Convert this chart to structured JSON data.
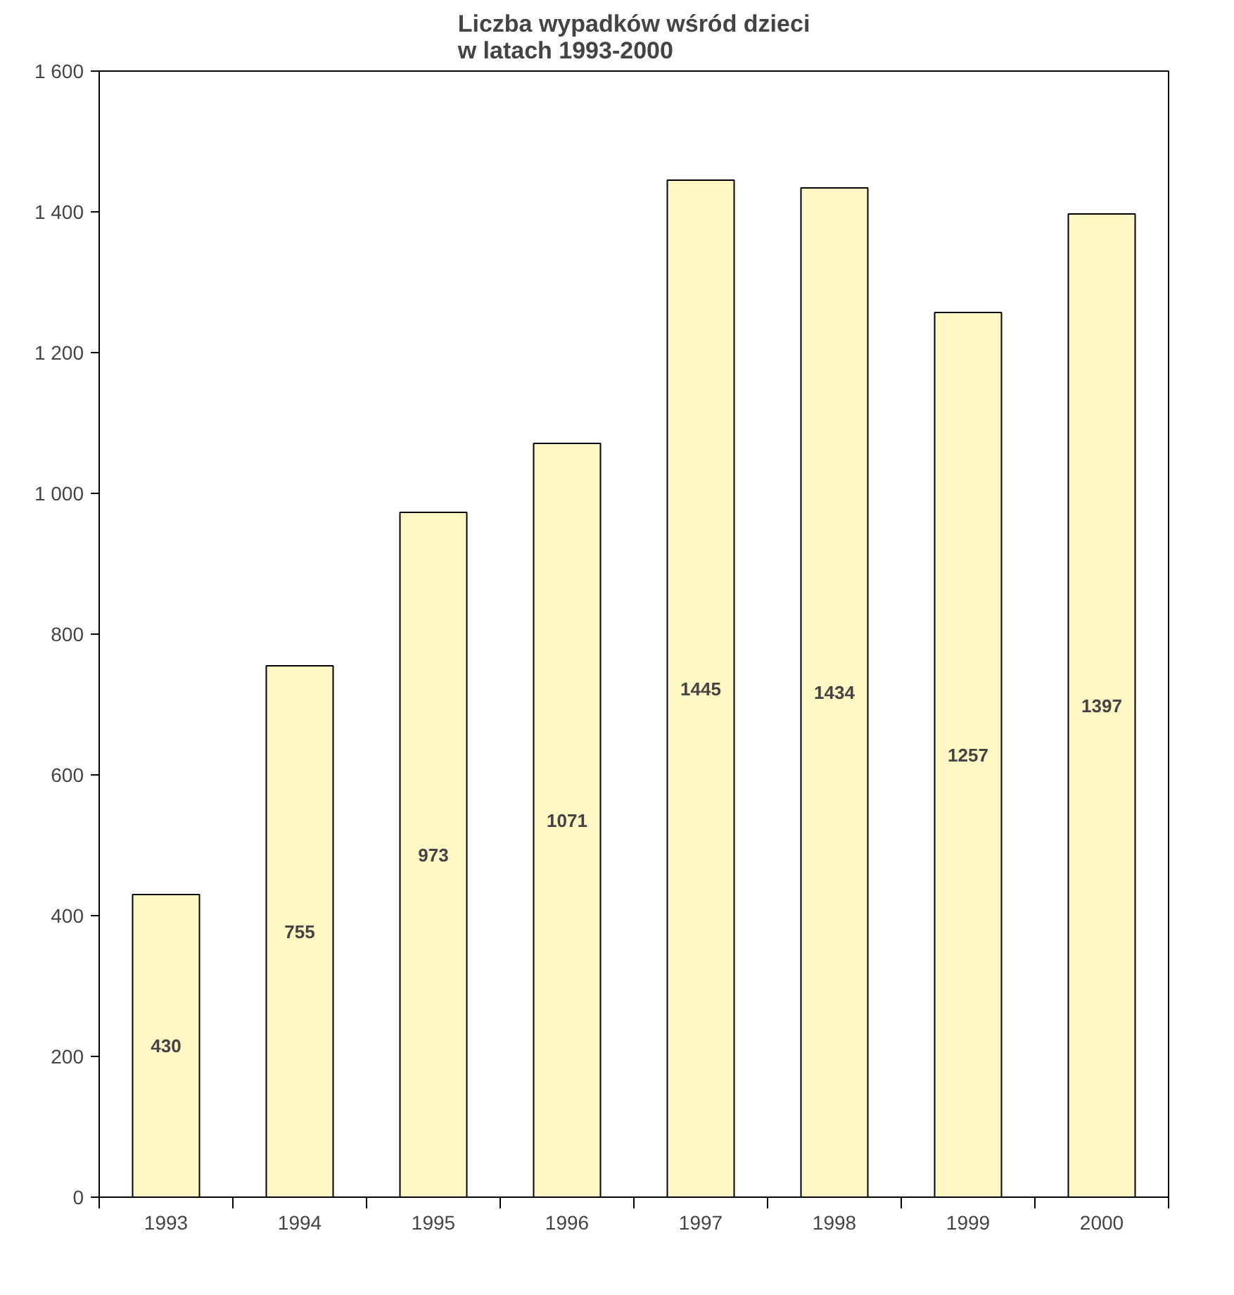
{
  "chart_data": {
    "type": "bar",
    "title": "Liczba wypadków wśród dzieci\nw  latach  1993-2000",
    "categories": [
      "1993",
      "1994",
      "1995",
      "1996",
      "1997",
      "1998",
      "1999",
      "2000"
    ],
    "values": [
      430,
      755,
      973,
      1071,
      1445,
      1434,
      1257,
      1397
    ],
    "color": "#fff8c4",
    "ylim": [
      0,
      1600
    ],
    "yticks": [
      0,
      200,
      400,
      600,
      800,
      {
        "value": 1000,
        "label": "1 000"
      },
      {
        "value": 1200,
        "label": "1 200"
      },
      {
        "value": 1400,
        "label": "1 400"
      },
      {
        "value": 1600,
        "label": "1 600"
      }
    ],
    "data_labels": true,
    "grid": false
  }
}
